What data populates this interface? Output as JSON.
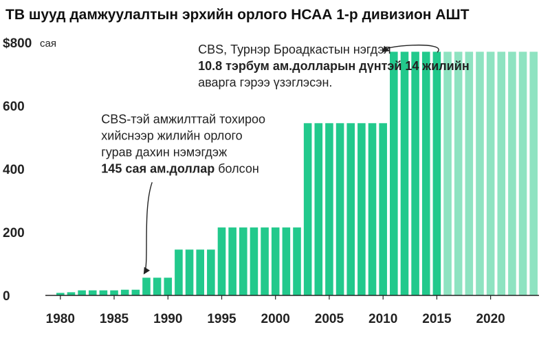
{
  "chart_data": {
    "type": "bar",
    "title": "ТВ шууд дамжуулалтын эрхийн орлого НСАА 1-р дивизион АШТ",
    "xlabel": "",
    "ylabel": "",
    "y_unit_suffix": "сая",
    "y_first_label_prefix": "$",
    "ylim": [
      0,
      800
    ],
    "y_ticks": [
      0,
      200,
      400,
      600,
      800
    ],
    "x_ticks": [
      1980,
      1985,
      1990,
      1995,
      2000,
      2005,
      2010,
      2015,
      2020
    ],
    "grid": false,
    "legend": "none",
    "colors": {
      "actual": "#22c98c",
      "projected": "#8ee3c1",
      "text": "#222222"
    },
    "x": [
      1980,
      1981,
      1982,
      1983,
      1984,
      1985,
      1986,
      1987,
      1988,
      1989,
      1990,
      1991,
      1992,
      1993,
      1994,
      1995,
      1996,
      1997,
      1998,
      1999,
      2000,
      2001,
      2002,
      2003,
      2004,
      2005,
      2006,
      2007,
      2008,
      2009,
      2010,
      2011,
      2012,
      2013,
      2014,
      2015,
      2016,
      2017,
      2018,
      2019,
      2020,
      2021,
      2022,
      2023,
      2024
    ],
    "values": [
      8,
      10,
      16,
      16,
      16,
      16,
      18,
      18,
      56,
      56,
      56,
      145,
      145,
      145,
      145,
      215,
      215,
      215,
      215,
      215,
      215,
      215,
      215,
      545,
      545,
      545,
      545,
      545,
      545,
      545,
      545,
      771,
      771,
      771,
      771,
      771,
      771,
      771,
      771,
      771,
      771,
      771,
      771,
      771,
      771
    ],
    "projected_from": 2016,
    "annotations": [
      {
        "lines": [
          {
            "parts": [
              {
                "text": "CBS-тэй амжилттай тохироо",
                "bold": false
              }
            ]
          },
          {
            "parts": [
              {
                "text": "хийснээр жилийн орлого",
                "bold": false
              }
            ]
          },
          {
            "parts": [
              {
                "text": "гурав дахин нэмэгдэж",
                "bold": false
              }
            ]
          },
          {
            "parts": [
              {
                "text": "145 сая ам.доллар",
                "bold": true
              },
              {
                "text": " болсон",
                "bold": false
              }
            ]
          }
        ],
        "x": 1984.3,
        "y": 545,
        "arrow_to": [
          1988.3,
          70
        ]
      },
      {
        "lines": [
          {
            "parts": [
              {
                "text": "CBS, Турнэр Броадкастын нэгдэл",
                "bold": false
              }
            ]
          },
          {
            "parts": [
              {
                "text": "10.8 тэрбум ам.долларын дүнтэй 14 жилийн",
                "bold": true
              }
            ]
          },
          {
            "parts": [
              {
                "text": "аварга гэрээ үзэглэсэн.",
                "bold": false
              }
            ]
          }
        ],
        "x": 1993.3,
        "y": 765,
        "arrow_to": [
          2011.0,
          775
        ]
      }
    ]
  }
}
